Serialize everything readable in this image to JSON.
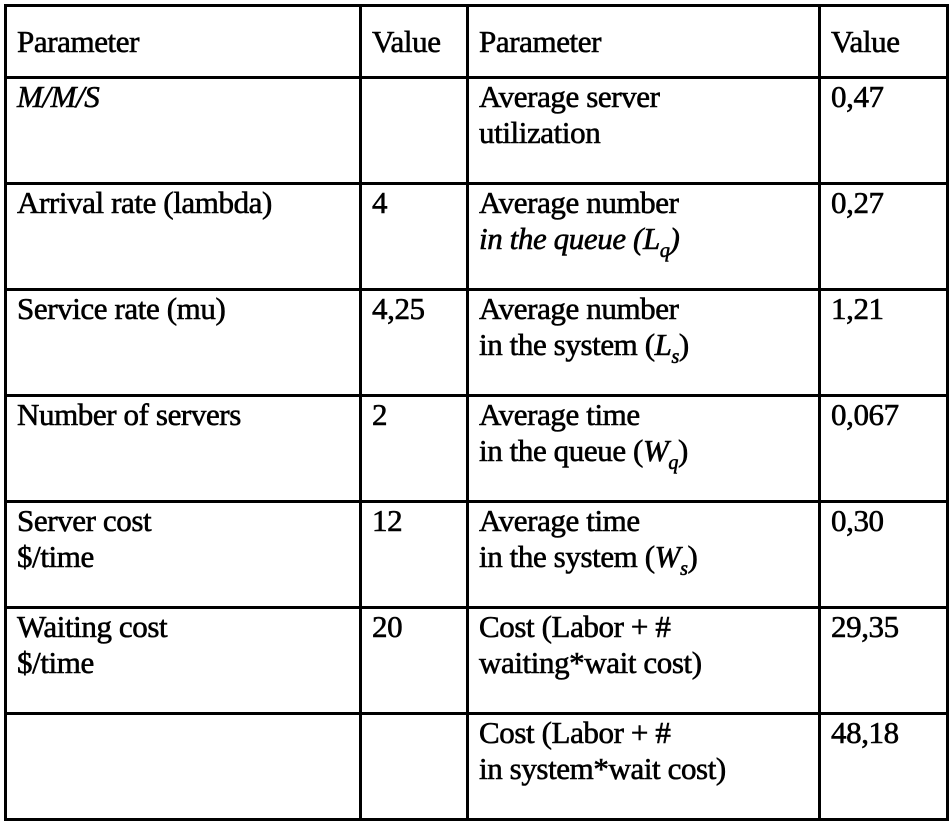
{
  "headers": [
    "Parameter",
    "Value",
    "Parameter",
    "Value"
  ],
  "rows": [
    {
      "left_param": [
        "M/M/S"
      ],
      "left_value": "",
      "right_param": [
        "Average server",
        "utilization"
      ],
      "right_value": "0,47"
    },
    {
      "left_param": [
        "Arrival rate (lambda)"
      ],
      "left_value": "4",
      "right_param": [
        "Average number",
        "in the queue (",
        "L",
        "q",
        ")"
      ],
      "right_value": "0,27"
    },
    {
      "left_param": [
        "Service rate (mu)"
      ],
      "left_value": "4,25",
      "right_param": [
        "Average number",
        "in the system (",
        "L",
        "s",
        ")"
      ],
      "right_value": "1,21"
    },
    {
      "left_param": [
        "Number of servers"
      ],
      "left_value": "2",
      "right_param": [
        "Average time",
        "in the queue (",
        "W",
        "q",
        ")"
      ],
      "right_value": "0,067"
    },
    {
      "left_param": [
        "Server cost",
        "$/time"
      ],
      "left_value": "12",
      "right_param": [
        "Average time",
        "in the system (",
        "W",
        "s",
        ")"
      ],
      "right_value": "0,30"
    },
    {
      "left_param": [
        "Waiting cost",
        "$/time"
      ],
      "left_value": "20",
      "right_param": [
        "Cost (Labor + #",
        "waiting*wait cost)"
      ],
      "right_value": "29,35"
    },
    {
      "left_param": [
        ""
      ],
      "left_value": "",
      "right_param": [
        "Cost (Labor + #",
        "in system*wait cost)"
      ],
      "right_value": "48,18"
    }
  ]
}
